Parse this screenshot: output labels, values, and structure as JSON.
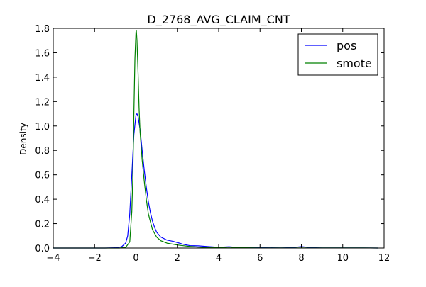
{
  "chart_data": {
    "type": "line",
    "title": "D_2768_AVG_CLAIM_CNT",
    "xlabel": "",
    "ylabel": "Density",
    "xlim": [
      -4,
      12
    ],
    "ylim": [
      0,
      1.8
    ],
    "xticks": [
      -4,
      -2,
      0,
      2,
      4,
      6,
      8,
      10,
      12
    ],
    "yticks": [
      0.0,
      0.2,
      0.4,
      0.6,
      0.8,
      1.0,
      1.2,
      1.4,
      1.6,
      1.8
    ],
    "xtick_labels": [
      "−4",
      "−2",
      "0",
      "2",
      "4",
      "6",
      "8",
      "10",
      "12"
    ],
    "ytick_labels": [
      "0.0",
      "0.2",
      "0.4",
      "0.6",
      "0.8",
      "1.0",
      "1.2",
      "1.4",
      "1.6",
      "1.8"
    ],
    "grid": false,
    "legend_position": "top-right",
    "series": [
      {
        "name": "pos",
        "color": "#0000ff",
        "x": [
          -4.0,
          -1.5,
          -1.0,
          -0.7,
          -0.5,
          -0.4,
          -0.3,
          -0.2,
          -0.1,
          0.0,
          0.05,
          0.1,
          0.2,
          0.3,
          0.4,
          0.5,
          0.6,
          0.7,
          0.8,
          0.9,
          1.0,
          1.2,
          1.5,
          1.8,
          2.0,
          2.3,
          2.6,
          3.0,
          3.5,
          4.0,
          4.5,
          5.0,
          5.5,
          6.0,
          7.0,
          7.6,
          8.0,
          8.4,
          9.0,
          10.0,
          11.0,
          11.7
        ],
        "y": [
          0.0,
          0.0,
          0.002,
          0.01,
          0.04,
          0.1,
          0.28,
          0.6,
          0.93,
          1.09,
          1.1,
          1.08,
          0.97,
          0.8,
          0.64,
          0.5,
          0.38,
          0.29,
          0.22,
          0.17,
          0.13,
          0.09,
          0.065,
          0.055,
          0.045,
          0.03,
          0.02,
          0.018,
          0.012,
          0.006,
          0.01,
          0.004,
          0.002,
          0.003,
          0.001,
          0.004,
          0.012,
          0.004,
          0.001,
          0.001,
          0.001,
          0.0
        ]
      },
      {
        "name": "smote",
        "color": "#008000",
        "x": [
          -4.0,
          -1.5,
          -0.8,
          -0.5,
          -0.3,
          -0.2,
          -0.15,
          -0.1,
          -0.05,
          0.0,
          0.02,
          0.05,
          0.1,
          0.15,
          0.2,
          0.3,
          0.4,
          0.5,
          0.6,
          0.8,
          1.0,
          1.2,
          1.5,
          2.0,
          2.5,
          3.0,
          3.5,
          4.0,
          4.5,
          5.0,
          6.0,
          7.0,
          8.0,
          9.0,
          10.0,
          11.0,
          11.7
        ],
        "y": [
          0.0,
          0.0,
          0.0,
          0.005,
          0.05,
          0.3,
          0.6,
          1.1,
          1.55,
          1.77,
          1.78,
          1.7,
          1.45,
          1.15,
          0.95,
          0.72,
          0.55,
          0.4,
          0.28,
          0.15,
          0.09,
          0.06,
          0.04,
          0.025,
          0.015,
          0.008,
          0.004,
          0.003,
          0.008,
          0.003,
          0.001,
          0.001,
          0.001,
          0.001,
          0.001,
          0.001,
          0.0
        ]
      }
    ]
  }
}
